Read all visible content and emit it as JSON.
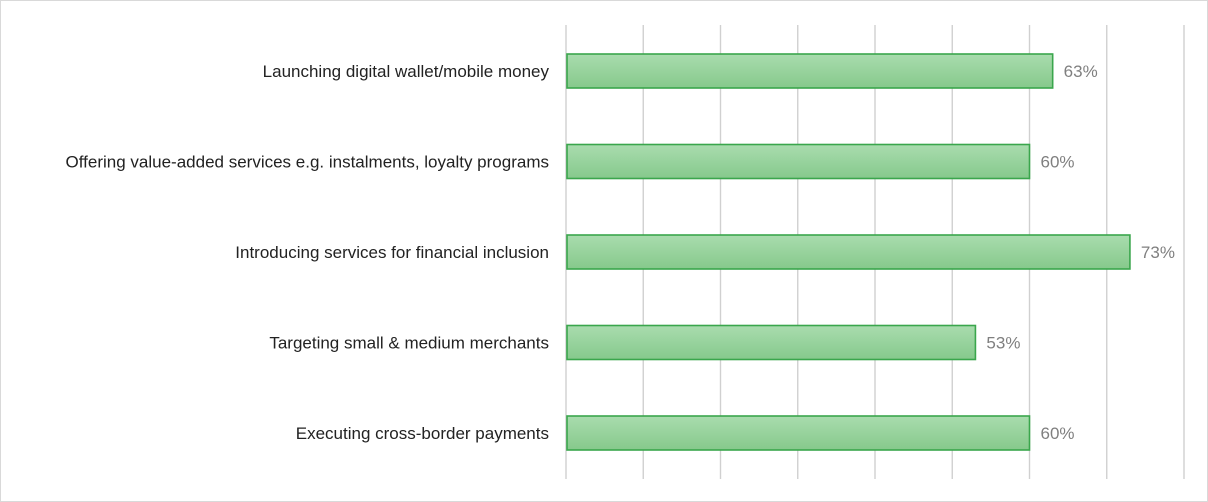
{
  "chart_data": {
    "type": "bar",
    "orientation": "horizontal",
    "categories": [
      "Launching digital wallet/mobile money",
      "Offering value-added services e.g. instalments, loyalty programs",
      "Introducing services for financial inclusion",
      "Targeting small & medium merchants",
      "Executing cross-border payments"
    ],
    "values": [
      63,
      60,
      73,
      53,
      60
    ],
    "value_labels": [
      "63%",
      "60%",
      "73%",
      "53%",
      "60%"
    ],
    "title": "",
    "xlabel": "",
    "ylabel": "",
    "xlim": [
      0,
      80
    ],
    "grid": true,
    "legend": "none",
    "colors": {
      "bar_fill_top": "#a9dcae",
      "bar_fill_bottom": "#86c98c",
      "bar_stroke": "#3aa64c",
      "grid": "#d0d0d0",
      "label": "#222222",
      "value_label": "#7f7f7f"
    }
  }
}
